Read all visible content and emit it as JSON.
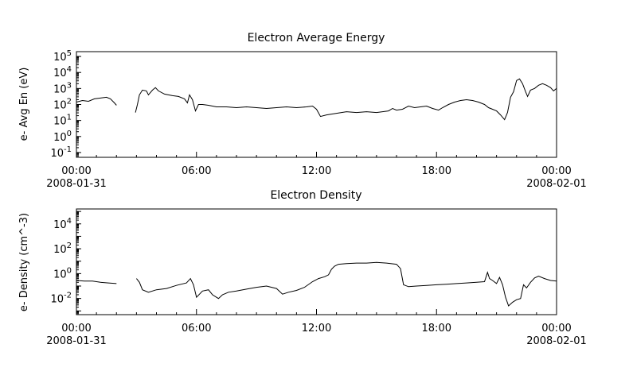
{
  "chart_data": [
    {
      "type": "line",
      "title": "Electron Average Energy",
      "ylabel": "e- Avg En (eV)",
      "yscale": "log",
      "ylim_log10": [
        -1.3,
        5.3
      ],
      "ytick_labels": [
        {
          "base": "10",
          "exp": "5",
          "log10": 5
        },
        {
          "base": "10",
          "exp": "4",
          "log10": 4
        },
        {
          "base": "10",
          "exp": "3",
          "log10": 3
        },
        {
          "base": "10",
          "exp": "2",
          "log10": 2
        },
        {
          "base": "10",
          "exp": "1",
          "log10": 1
        },
        {
          "base": "10",
          "exp": "0",
          "log10": 0
        },
        {
          "base": "10",
          "exp": "-1",
          "log10": -1
        }
      ],
      "xlim_hours": [
        0,
        24
      ],
      "xtick_labels": [
        {
          "hour": 0,
          "time": "00:00",
          "date": "2008-01-31"
        },
        {
          "hour": 6,
          "time": "06:00",
          "date": ""
        },
        {
          "hour": 12,
          "time": "12:00",
          "date": ""
        },
        {
          "hour": 18,
          "time": "18:00",
          "date": ""
        },
        {
          "hour": 24,
          "time": "00:00",
          "date": "2008-02-01"
        }
      ],
      "segments": [
        [
          [
            0,
            2.15
          ],
          [
            0.3,
            2.25
          ],
          [
            0.6,
            2.2
          ],
          [
            0.9,
            2.35
          ],
          [
            1.2,
            2.4
          ],
          [
            1.5,
            2.45
          ],
          [
            1.7,
            2.35
          ],
          [
            1.9,
            2.1
          ],
          [
            2.0,
            1.95
          ]
        ],
        [
          [
            2.95,
            1.5
          ],
          [
            3.05,
            2.0
          ],
          [
            3.15,
            2.6
          ],
          [
            3.3,
            2.9
          ],
          [
            3.5,
            2.85
          ],
          [
            3.6,
            2.6
          ],
          [
            3.8,
            2.9
          ],
          [
            3.95,
            3.05
          ],
          [
            4.1,
            2.85
          ],
          [
            4.4,
            2.65
          ],
          [
            4.8,
            2.55
          ],
          [
            5.1,
            2.5
          ],
          [
            5.4,
            2.35
          ],
          [
            5.55,
            2.1
          ],
          [
            5.65,
            2.6
          ],
          [
            5.8,
            2.3
          ],
          [
            5.95,
            1.6
          ],
          [
            6.1,
            2.0
          ],
          [
            6.3,
            2.0
          ],
          [
            6.6,
            1.95
          ],
          [
            7.0,
            1.85
          ],
          [
            7.5,
            1.85
          ],
          [
            8.0,
            1.8
          ],
          [
            8.5,
            1.85
          ],
          [
            9.0,
            1.8
          ],
          [
            9.5,
            1.75
          ],
          [
            10.0,
            1.8
          ],
          [
            10.5,
            1.85
          ],
          [
            11.0,
            1.8
          ],
          [
            11.5,
            1.85
          ],
          [
            11.8,
            1.9
          ],
          [
            12.0,
            1.7
          ],
          [
            12.2,
            1.25
          ],
          [
            12.5,
            1.35
          ],
          [
            13.0,
            1.45
          ],
          [
            13.5,
            1.55
          ],
          [
            14.0,
            1.5
          ],
          [
            14.5,
            1.55
          ],
          [
            15.0,
            1.5
          ],
          [
            15.3,
            1.55
          ],
          [
            15.6,
            1.6
          ],
          [
            15.8,
            1.75
          ],
          [
            16.0,
            1.65
          ],
          [
            16.3,
            1.7
          ],
          [
            16.6,
            1.9
          ],
          [
            16.9,
            1.8
          ],
          [
            17.2,
            1.85
          ],
          [
            17.5,
            1.9
          ],
          [
            17.8,
            1.75
          ],
          [
            18.1,
            1.65
          ],
          [
            18.3,
            1.8
          ],
          [
            18.6,
            2.0
          ],
          [
            18.9,
            2.15
          ],
          [
            19.2,
            2.25
          ],
          [
            19.5,
            2.3
          ],
          [
            19.8,
            2.25
          ],
          [
            20.1,
            2.15
          ],
          [
            20.4,
            2.0
          ],
          [
            20.6,
            1.8
          ],
          [
            20.8,
            1.7
          ],
          [
            21.0,
            1.6
          ],
          [
            21.2,
            1.35
          ],
          [
            21.4,
            1.05
          ],
          [
            21.55,
            1.5
          ],
          [
            21.7,
            2.45
          ],
          [
            21.85,
            2.8
          ],
          [
            22.0,
            3.5
          ],
          [
            22.15,
            3.6
          ],
          [
            22.3,
            3.3
          ],
          [
            22.45,
            2.8
          ],
          [
            22.55,
            2.5
          ],
          [
            22.7,
            2.9
          ],
          [
            22.9,
            3.0
          ],
          [
            23.1,
            3.2
          ],
          [
            23.3,
            3.3
          ],
          [
            23.5,
            3.2
          ],
          [
            23.7,
            3.05
          ],
          [
            23.85,
            2.85
          ],
          [
            24,
            3.0
          ]
        ]
      ]
    },
    {
      "type": "line",
      "title": "Electron Density",
      "ylabel": "e- Density (cm^-3)",
      "yscale": "log",
      "ylim_log10": [
        -3.3,
        5.2
      ],
      "ytick_labels": [
        {
          "base": "10",
          "exp": "4",
          "log10": 4
        },
        {
          "base": "10",
          "exp": "2",
          "log10": 2
        },
        {
          "base": "10",
          "exp": "0",
          "log10": 0
        },
        {
          "base": "10",
          "exp": "-2",
          "log10": -2
        }
      ],
      "xlim_hours": [
        0,
        24
      ],
      "xtick_labels": [
        {
          "hour": 0,
          "time": "00:00",
          "date": "2008-01-31"
        },
        {
          "hour": 6,
          "time": "06:00",
          "date": ""
        },
        {
          "hour": 12,
          "time": "12:00",
          "date": ""
        },
        {
          "hour": 18,
          "time": "18:00",
          "date": ""
        },
        {
          "hour": 24,
          "time": "00:00",
          "date": "2008-02-01"
        }
      ],
      "segments": [
        [
          [
            0,
            -0.55
          ],
          [
            0.4,
            -0.6
          ],
          [
            0.8,
            -0.6
          ],
          [
            1.2,
            -0.7
          ],
          [
            1.6,
            -0.75
          ],
          [
            2.0,
            -0.8
          ]
        ],
        [
          [
            3.0,
            -0.4
          ],
          [
            3.15,
            -0.7
          ],
          [
            3.3,
            -1.3
          ],
          [
            3.6,
            -1.5
          ],
          [
            4.0,
            -1.3
          ],
          [
            4.5,
            -1.2
          ],
          [
            5.0,
            -0.95
          ],
          [
            5.5,
            -0.75
          ],
          [
            5.7,
            -0.4
          ],
          [
            5.85,
            -0.9
          ],
          [
            6.0,
            -1.9
          ],
          [
            6.3,
            -1.4
          ],
          [
            6.6,
            -1.3
          ],
          [
            6.8,
            -1.7
          ],
          [
            7.1,
            -2.0
          ],
          [
            7.3,
            -1.7
          ],
          [
            7.6,
            -1.5
          ],
          [
            8.0,
            -1.4
          ],
          [
            8.5,
            -1.25
          ],
          [
            9.0,
            -1.1
          ],
          [
            9.5,
            -1.0
          ],
          [
            10.0,
            -1.2
          ],
          [
            10.3,
            -1.65
          ],
          [
            10.6,
            -1.5
          ],
          [
            11.0,
            -1.35
          ],
          [
            11.4,
            -1.1
          ],
          [
            11.8,
            -0.65
          ],
          [
            12.1,
            -0.4
          ],
          [
            12.4,
            -0.25
          ],
          [
            12.6,
            -0.1
          ],
          [
            12.75,
            0.35
          ],
          [
            12.9,
            0.6
          ],
          [
            13.1,
            0.75
          ],
          [
            13.5,
            0.8
          ],
          [
            14.0,
            0.85
          ],
          [
            14.5,
            0.85
          ],
          [
            15.0,
            0.9
          ],
          [
            15.5,
            0.85
          ],
          [
            16.0,
            0.75
          ],
          [
            16.2,
            0.4
          ],
          [
            16.35,
            -0.9
          ],
          [
            16.6,
            -1.05
          ],
          [
            17.0,
            -1.0
          ],
          [
            17.5,
            -0.95
          ],
          [
            18.0,
            -0.9
          ],
          [
            18.5,
            -0.85
          ],
          [
            19.0,
            -0.8
          ],
          [
            19.5,
            -0.75
          ],
          [
            20.0,
            -0.7
          ],
          [
            20.4,
            -0.65
          ],
          [
            20.55,
            0.1
          ],
          [
            20.65,
            -0.4
          ],
          [
            20.8,
            -0.55
          ],
          [
            21.0,
            -0.8
          ],
          [
            21.15,
            -0.3
          ],
          [
            21.3,
            -0.9
          ],
          [
            21.45,
            -1.9
          ],
          [
            21.6,
            -2.6
          ],
          [
            21.8,
            -2.3
          ],
          [
            22.0,
            -2.1
          ],
          [
            22.2,
            -2.0
          ],
          [
            22.35,
            -0.9
          ],
          [
            22.5,
            -1.15
          ],
          [
            22.7,
            -0.7
          ],
          [
            22.9,
            -0.35
          ],
          [
            23.1,
            -0.2
          ],
          [
            23.4,
            -0.4
          ],
          [
            23.7,
            -0.55
          ],
          [
            24,
            -0.6
          ]
        ]
      ]
    }
  ]
}
